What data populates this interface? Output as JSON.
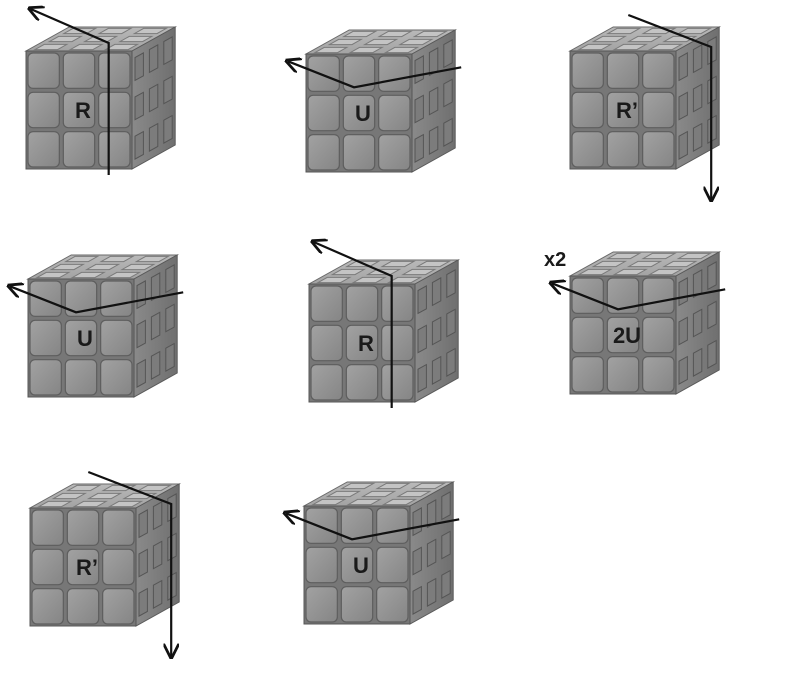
{
  "colors": {
    "cube_fill": "#8f8f8f",
    "cube_edge": "#5a5a5a",
    "arrow": "#111111"
  },
  "steps": [
    {
      "label": "R",
      "direction": "up"
    },
    {
      "label": "U",
      "direction": "left"
    },
    {
      "label": "R’",
      "direction": "down"
    },
    {
      "label": "U",
      "direction": "left"
    },
    {
      "label": "R",
      "direction": "up"
    },
    {
      "label": "2U",
      "direction": "left",
      "extra": "x2"
    },
    {
      "label": "R’",
      "direction": "down"
    },
    {
      "label": "U",
      "direction": "left"
    }
  ]
}
